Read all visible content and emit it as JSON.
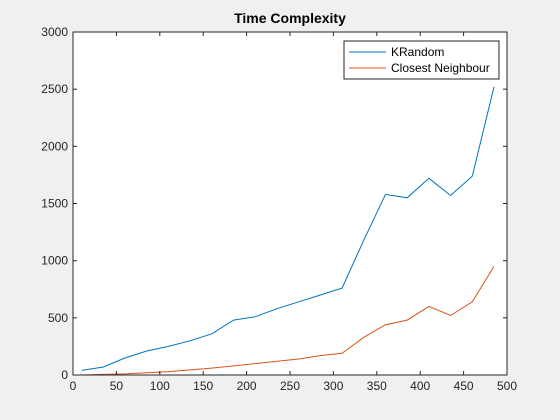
{
  "chart_data": {
    "type": "line",
    "title": "Time Complexity",
    "xlabel": "",
    "ylabel": "",
    "xlim": [
      0,
      500
    ],
    "ylim": [
      0,
      3000
    ],
    "xticks": [
      0,
      50,
      100,
      150,
      200,
      250,
      300,
      350,
      400,
      450,
      500
    ],
    "yticks": [
      0,
      500,
      1000,
      1500,
      2000,
      2500,
      3000
    ],
    "grid": false,
    "legend_position": "top-right",
    "series": [
      {
        "name": "KRandom",
        "color": "#0072BD",
        "x": [
          10,
          35,
          60,
          85,
          110,
          135,
          160,
          185,
          210,
          235,
          260,
          285,
          310,
          335,
          360,
          385,
          410,
          435,
          460,
          485
        ],
        "y": [
          40,
          70,
          150,
          210,
          250,
          300,
          360,
          480,
          510,
          580,
          640,
          700,
          760,
          1180,
          1580,
          1550,
          1720,
          1570,
          1740,
          2520
        ]
      },
      {
        "name": "Closest Neighbour",
        "color": "#D95319",
        "x": [
          10,
          35,
          60,
          85,
          110,
          135,
          160,
          185,
          210,
          235,
          260,
          285,
          310,
          335,
          360,
          385,
          410,
          435,
          460,
          485
        ],
        "y": [
          0,
          5,
          10,
          20,
          30,
          45,
          60,
          80,
          100,
          120,
          140,
          170,
          190,
          330,
          440,
          480,
          600,
          520,
          640,
          950
        ]
      }
    ]
  }
}
